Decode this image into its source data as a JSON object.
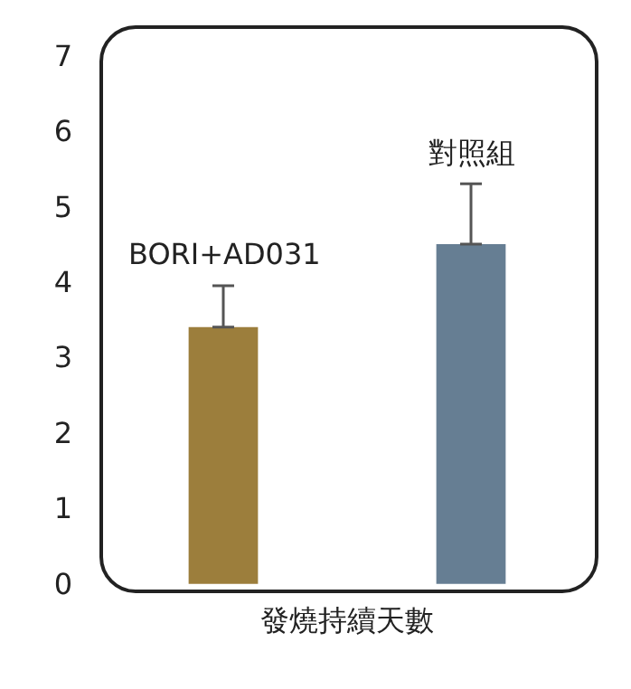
{
  "chart_data": {
    "type": "bar",
    "xlabel": "發燒持續天數",
    "categories": [
      "BORI+AD031",
      "對照組"
    ],
    "values": [
      3.4,
      4.5
    ],
    "colors": [
      "#9c7e3c",
      "#667e93"
    ],
    "errors": [
      [
        3.4,
        3.95
      ],
      [
        4.5,
        5.3
      ]
    ],
    "ylim": [
      -0.1,
      7.4
    ],
    "yticks": [
      0,
      1,
      2,
      3,
      4,
      5,
      6,
      7
    ],
    "grid": false
  }
}
